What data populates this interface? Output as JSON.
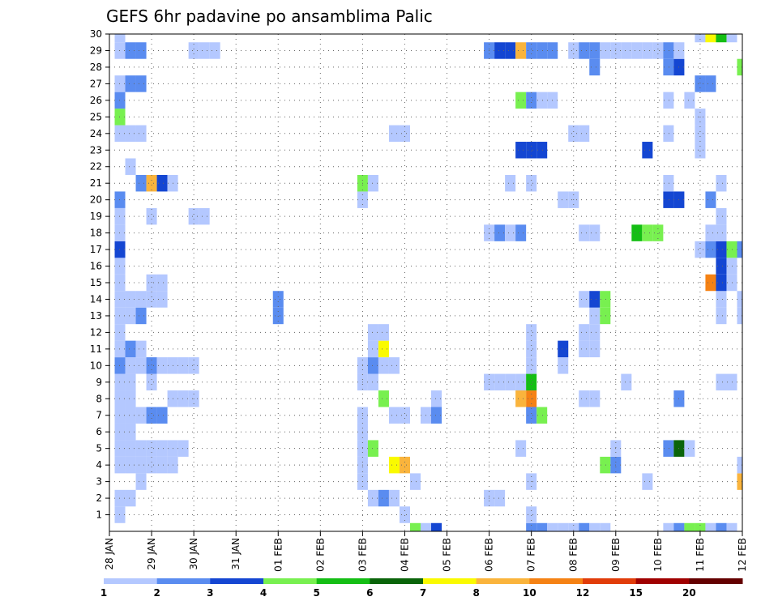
{
  "chart_data": {
    "type": "heatmap",
    "title": "GEFS 6hr padavine po ansamblima Palic",
    "xlabel": "",
    "ylabel": "",
    "x_tick_labels": [
      "28 JAN",
      "29 JAN",
      "30 JAN",
      "31 JAN",
      "01 FEB",
      "02 FEB",
      "03 FEB",
      "04 FEB",
      "05 FEB",
      "06 FEB",
      "07 FEB",
      "08 FEB",
      "09 FEB",
      "10 FEB",
      "11 FEB",
      "12 FEB"
    ],
    "y_tick_labels": [
      "1",
      "2",
      "3",
      "4",
      "5",
      "6",
      "7",
      "8",
      "9",
      "10",
      "11",
      "12",
      "13",
      "14",
      "15",
      "16",
      "17",
      "18",
      "19",
      "20",
      "21",
      "22",
      "23",
      "24",
      "25",
      "26",
      "27",
      "28",
      "29",
      "30"
    ],
    "xlim_steps": [
      0,
      60
    ],
    "ylim_members": [
      0,
      30
    ],
    "steps_per_day": 4,
    "grid": true,
    "legend_position": "bottom",
    "legend": {
      "boundaries": [
        "1",
        "2",
        "3",
        "4",
        "5",
        "6",
        "7",
        "8",
        "10",
        "12",
        "15",
        "20"
      ],
      "colors": [
        "#b4c8ff",
        "#5a8cf0",
        "#1446d2",
        "#78f050",
        "#14be14",
        "#0a640a",
        "#fafa00",
        "#fab43c",
        "#f58214",
        "#e13c0a",
        "#a00000",
        "#640000"
      ]
    },
    "cells": [
      [
        1,
        1,
        1
      ],
      [
        1,
        2,
        1
      ],
      [
        1,
        4,
        1
      ],
      [
        1,
        5,
        1
      ],
      [
        1,
        6,
        1
      ],
      [
        1,
        7,
        1
      ],
      [
        1,
        8,
        1
      ],
      [
        1,
        9,
        1
      ],
      [
        1,
        10,
        2
      ],
      [
        1,
        11,
        1
      ],
      [
        1,
        12,
        1
      ],
      [
        1,
        13,
        1
      ],
      [
        1,
        14,
        1
      ],
      [
        1,
        15,
        1
      ],
      [
        1,
        16,
        1
      ],
      [
        1,
        17,
        3
      ],
      [
        1,
        18,
        1
      ],
      [
        1,
        19,
        1
      ],
      [
        1,
        20,
        2
      ],
      [
        1,
        24,
        1
      ],
      [
        1,
        25,
        4
      ],
      [
        1,
        26,
        2
      ],
      [
        1,
        27,
        1
      ],
      [
        1,
        29,
        1
      ],
      [
        1,
        30,
        1
      ],
      [
        2,
        2,
        1
      ],
      [
        2,
        4,
        1
      ],
      [
        2,
        5,
        1
      ],
      [
        2,
        6,
        1
      ],
      [
        2,
        7,
        1
      ],
      [
        2,
        8,
        1
      ],
      [
        2,
        9,
        1
      ],
      [
        2,
        10,
        1
      ],
      [
        2,
        11,
        2
      ],
      [
        2,
        13,
        1
      ],
      [
        2,
        14,
        1
      ],
      [
        2,
        22,
        1
      ],
      [
        2,
        24,
        1
      ],
      [
        2,
        27,
        2
      ],
      [
        2,
        29,
        2
      ],
      [
        3,
        3,
        1
      ],
      [
        3,
        4,
        1
      ],
      [
        3,
        5,
        1
      ],
      [
        3,
        7,
        1
      ],
      [
        3,
        10,
        1
      ],
      [
        3,
        11,
        1
      ],
      [
        3,
        13,
        2
      ],
      [
        3,
        14,
        1
      ],
      [
        3,
        21,
        2
      ],
      [
        3,
        24,
        1
      ],
      [
        3,
        27,
        2
      ],
      [
        3,
        29,
        2
      ],
      [
        4,
        4,
        1
      ],
      [
        4,
        5,
        1
      ],
      [
        4,
        7,
        2
      ],
      [
        4,
        9,
        1
      ],
      [
        4,
        10,
        2
      ],
      [
        4,
        14,
        1
      ],
      [
        4,
        15,
        1
      ],
      [
        4,
        19,
        1
      ],
      [
        4,
        21,
        8
      ],
      [
        5,
        4,
        1
      ],
      [
        5,
        5,
        1
      ],
      [
        5,
        7,
        2
      ],
      [
        5,
        10,
        1
      ],
      [
        5,
        14,
        1
      ],
      [
        5,
        15,
        1
      ],
      [
        5,
        21,
        3
      ],
      [
        6,
        4,
        1
      ],
      [
        6,
        5,
        1
      ],
      [
        6,
        8,
        1
      ],
      [
        6,
        10,
        1
      ],
      [
        6,
        21,
        1
      ],
      [
        7,
        5,
        1
      ],
      [
        7,
        8,
        1
      ],
      [
        7,
        10,
        1
      ],
      [
        8,
        8,
        1
      ],
      [
        8,
        10,
        1
      ],
      [
        8,
        19,
        1
      ],
      [
        8,
        29,
        1
      ],
      [
        9,
        29,
        1
      ],
      [
        9,
        19,
        1
      ],
      [
        10,
        29,
        1
      ],
      [
        16,
        13,
        2
      ],
      [
        16,
        14,
        2
      ],
      [
        24,
        3,
        1
      ],
      [
        24,
        4,
        1
      ],
      [
        24,
        5,
        1
      ],
      [
        24,
        6,
        1
      ],
      [
        24,
        7,
        1
      ],
      [
        24,
        9,
        1
      ],
      [
        24,
        10,
        1
      ],
      [
        24,
        20,
        1
      ],
      [
        24,
        21,
        4
      ],
      [
        25,
        2,
        1
      ],
      [
        25,
        5,
        4
      ],
      [
        25,
        9,
        1
      ],
      [
        25,
        10,
        2
      ],
      [
        25,
        11,
        1
      ],
      [
        25,
        12,
        1
      ],
      [
        25,
        21,
        1
      ],
      [
        26,
        2,
        2
      ],
      [
        26,
        8,
        4
      ],
      [
        26,
        10,
        1
      ],
      [
        26,
        11,
        7
      ],
      [
        26,
        12,
        1
      ],
      [
        27,
        2,
        1
      ],
      [
        27,
        4,
        7
      ],
      [
        27,
        7,
        1
      ],
      [
        27,
        10,
        1
      ],
      [
        27,
        24,
        1
      ],
      [
        28,
        1,
        1
      ],
      [
        28,
        4,
        8
      ],
      [
        28,
        7,
        1
      ],
      [
        28,
        24,
        1
      ],
      [
        29,
        0,
        4
      ],
      [
        29,
        3,
        1
      ],
      [
        30,
        0,
        1
      ],
      [
        30,
        7,
        1
      ],
      [
        31,
        0,
        3
      ],
      [
        31,
        7,
        2
      ],
      [
        31,
        8,
        1
      ],
      [
        36,
        2,
        1
      ],
      [
        36,
        9,
        1
      ],
      [
        36,
        18,
        1
      ],
      [
        36,
        29,
        2
      ],
      [
        37,
        2,
        1
      ],
      [
        37,
        9,
        1
      ],
      [
        37,
        18,
        2
      ],
      [
        37,
        29,
        3
      ],
      [
        38,
        9,
        1
      ],
      [
        38,
        18,
        1
      ],
      [
        38,
        21,
        1
      ],
      [
        38,
        29,
        3
      ],
      [
        39,
        5,
        1
      ],
      [
        39,
        8,
        8
      ],
      [
        39,
        9,
        1
      ],
      [
        39,
        18,
        2
      ],
      [
        39,
        23,
        3
      ],
      [
        39,
        26,
        4
      ],
      [
        39,
        29,
        8
      ],
      [
        40,
        0,
        2
      ],
      [
        40,
        1,
        1
      ],
      [
        40,
        3,
        1
      ],
      [
        40,
        7,
        2
      ],
      [
        40,
        8,
        9
      ],
      [
        40,
        9,
        5
      ],
      [
        40,
        10,
        1
      ],
      [
        40,
        11,
        1
      ],
      [
        40,
        12,
        1
      ],
      [
        40,
        21,
        1
      ],
      [
        40,
        23,
        3
      ],
      [
        40,
        26,
        2
      ],
      [
        40,
        29,
        2
      ],
      [
        41,
        0,
        2
      ],
      [
        41,
        7,
        4
      ],
      [
        41,
        23,
        3
      ],
      [
        41,
        26,
        1
      ],
      [
        41,
        29,
        2
      ],
      [
        42,
        0,
        1
      ],
      [
        42,
        26,
        1
      ],
      [
        42,
        29,
        2
      ],
      [
        43,
        0,
        1
      ],
      [
        43,
        10,
        1
      ],
      [
        43,
        11,
        3
      ],
      [
        43,
        20,
        1
      ],
      [
        44,
        0,
        1
      ],
      [
        44,
        20,
        1
      ],
      [
        44,
        24,
        1
      ],
      [
        44,
        29,
        1
      ],
      [
        45,
        0,
        2
      ],
      [
        45,
        8,
        1
      ],
      [
        45,
        11,
        1
      ],
      [
        45,
        12,
        1
      ],
      [
        45,
        14,
        1
      ],
      [
        45,
        18,
        1
      ],
      [
        45,
        24,
        1
      ],
      [
        45,
        29,
        2
      ],
      [
        46,
        0,
        1
      ],
      [
        46,
        8,
        1
      ],
      [
        46,
        11,
        1
      ],
      [
        46,
        12,
        1
      ],
      [
        46,
        13,
        1
      ],
      [
        46,
        14,
        3
      ],
      [
        46,
        18,
        1
      ],
      [
        46,
        28,
        2
      ],
      [
        46,
        29,
        2
      ],
      [
        47,
        0,
        1
      ],
      [
        47,
        4,
        4
      ],
      [
        47,
        13,
        4
      ],
      [
        47,
        14,
        4
      ],
      [
        47,
        29,
        1
      ],
      [
        48,
        4,
        2
      ],
      [
        48,
        5,
        1
      ],
      [
        48,
        29,
        1
      ],
      [
        49,
        9,
        1
      ],
      [
        49,
        29,
        1
      ],
      [
        50,
        18,
        5
      ],
      [
        50,
        29,
        1
      ],
      [
        51,
        3,
        1
      ],
      [
        51,
        18,
        4
      ],
      [
        51,
        23,
        3
      ],
      [
        51,
        29,
        1
      ],
      [
        52,
        18,
        4
      ],
      [
        52,
        29,
        1
      ],
      [
        53,
        0,
        1
      ],
      [
        53,
        5,
        2
      ],
      [
        53,
        20,
        3
      ],
      [
        53,
        21,
        1
      ],
      [
        53,
        24,
        1
      ],
      [
        53,
        26,
        1
      ],
      [
        53,
        28,
        2
      ],
      [
        53,
        29,
        2
      ],
      [
        54,
        0,
        2
      ],
      [
        54,
        5,
        6
      ],
      [
        54,
        8,
        2
      ],
      [
        54,
        20,
        3
      ],
      [
        54,
        28,
        3
      ],
      [
        54,
        29,
        1
      ],
      [
        55,
        0,
        4
      ],
      [
        55,
        5,
        1
      ],
      [
        55,
        26,
        1
      ],
      [
        56,
        0,
        4
      ],
      [
        56,
        17,
        1
      ],
      [
        56,
        23,
        1
      ],
      [
        56,
        24,
        1
      ],
      [
        56,
        25,
        1
      ],
      [
        56,
        27,
        2
      ],
      [
        56,
        30,
        1
      ],
      [
        57,
        0,
        1
      ],
      [
        57,
        15,
        9
      ],
      [
        57,
        17,
        2
      ],
      [
        57,
        18,
        1
      ],
      [
        57,
        20,
        2
      ],
      [
        57,
        27,
        2
      ],
      [
        57,
        30,
        7
      ],
      [
        58,
        0,
        2
      ],
      [
        58,
        9,
        1
      ],
      [
        58,
        13,
        1
      ],
      [
        58,
        14,
        1
      ],
      [
        58,
        15,
        3
      ],
      [
        58,
        16,
        3
      ],
      [
        58,
        17,
        3
      ],
      [
        58,
        18,
        1
      ],
      [
        58,
        19,
        1
      ],
      [
        58,
        21,
        1
      ],
      [
        58,
        30,
        5
      ],
      [
        59,
        0,
        1
      ],
      [
        59,
        9,
        1
      ],
      [
        59,
        15,
        1
      ],
      [
        59,
        16,
        1
      ],
      [
        59,
        17,
        4
      ],
      [
        59,
        30,
        1
      ],
      [
        60,
        3,
        8
      ],
      [
        60,
        4,
        1
      ],
      [
        60,
        13,
        1
      ],
      [
        60,
        14,
        1
      ],
      [
        60,
        17,
        2
      ],
      [
        60,
        28,
        4
      ],
      [
        61,
        3,
        1
      ],
      [
        61,
        9,
        2
      ],
      [
        61,
        13,
        1
      ],
      [
        61,
        14,
        1
      ],
      [
        61,
        17,
        3
      ],
      [
        61,
        28,
        3
      ]
    ]
  }
}
